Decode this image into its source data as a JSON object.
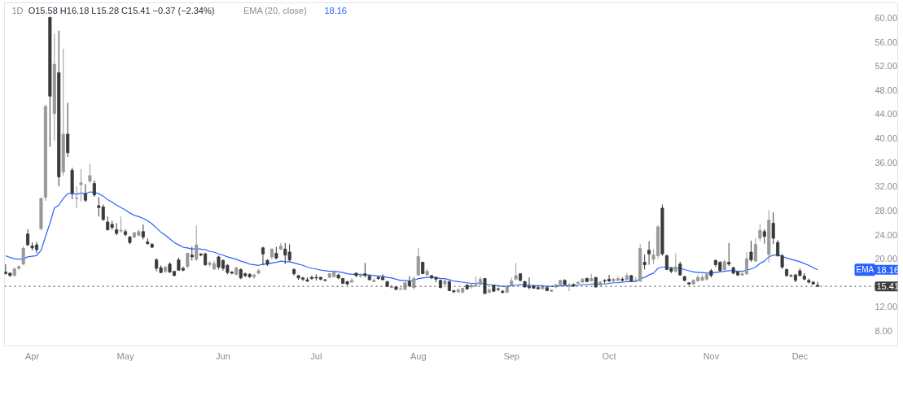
{
  "chart_data": {
    "type": "candlestick",
    "title": "1D",
    "annotations": [
      "O15.58 H16.18 L15.28 C15.41 −0.37 (−2.34%)",
      "EMA (20, close)",
      "18.16",
      "18.16"
    ],
    "categories": [
      null,
      null,
      null,
      null,
      null,
      null,
      "Apr",
      null,
      null,
      null,
      null,
      null,
      null,
      null,
      null,
      null,
      null,
      null,
      null,
      null,
      null,
      null,
      null,
      null,
      null,
      null,
      null,
      "May",
      null,
      null,
      null,
      null,
      null,
      null,
      null,
      null,
      null,
      null,
      null,
      null,
      null,
      null,
      null,
      null,
      null,
      null,
      null,
      null,
      null,
      "Jun",
      null,
      null,
      null,
      null,
      null,
      null,
      null,
      null,
      null,
      null,
      null,
      null,
      null,
      null,
      null,
      null,
      null,
      null,
      null,
      null,
      "Jul",
      null,
      null,
      null,
      null,
      null,
      null,
      null,
      null,
      null,
      null,
      null,
      null,
      null,
      null,
      null,
      null,
      null,
      null,
      null,
      null,
      null,
      null,
      "Aug",
      null,
      null,
      null,
      null,
      null,
      null,
      null,
      null,
      null,
      null,
      null,
      null,
      null,
      null,
      null,
      null,
      null,
      null,
      null,
      null,
      "Sep",
      null,
      null,
      null,
      null,
      null,
      null,
      null,
      null,
      null,
      null,
      null,
      null,
      null,
      null,
      null,
      null,
      null,
      null,
      null,
      null,
      null,
      "Oct",
      null,
      null,
      null,
      null,
      null,
      null,
      null,
      null,
      null,
      null,
      null,
      null,
      null,
      null,
      null,
      null,
      null,
      null,
      null,
      null,
      null,
      null,
      "Nov",
      null,
      null,
      null,
      null,
      null,
      null,
      null,
      null,
      null,
      null,
      null,
      null,
      null,
      null,
      null,
      null,
      null,
      null,
      null,
      "Dec",
      null,
      null,
      null,
      null
    ],
    "ohlc": [
      [
        17.8,
        19.1,
        17.4,
        17.5
      ],
      [
        17.6,
        17.7,
        17.0,
        17.2
      ],
      [
        17.2,
        18.5,
        17.1,
        18.3
      ],
      [
        18.4,
        18.9,
        18.1,
        18.7
      ],
      [
        19.1,
        22.1,
        18.9,
        21.7
      ],
      [
        24.1,
        24.9,
        22.1,
        22.3
      ],
      [
        22.1,
        22.7,
        21.4,
        21.8
      ],
      [
        22.3,
        22.8,
        20.9,
        21.5
      ],
      [
        25.0,
        30.2,
        24.7,
        30.0
      ],
      [
        30.2,
        45.6,
        29.6,
        45.3
      ],
      [
        60.1,
        60.1,
        38.6,
        47.0
      ],
      [
        44.1,
        57.4,
        39.6,
        52.3
      ],
      [
        50.9,
        57.9,
        32.0,
        33.6
      ],
      [
        34.4,
        54.9,
        33.8,
        40.7
      ],
      [
        40.7,
        45.9,
        36.9,
        37.6
      ],
      [
        34.7,
        35.1,
        29.9,
        30.9
      ],
      [
        30.0,
        32.0,
        28.4,
        30.1
      ],
      [
        32.3,
        34.9,
        29.5,
        32.6
      ],
      [
        30.8,
        32.4,
        29.4,
        29.7
      ],
      [
        32.9,
        35.7,
        32.6,
        33.8
      ],
      [
        32.5,
        33.0,
        30.3,
        30.6
      ],
      [
        28.8,
        30.2,
        27.0,
        28.5
      ],
      [
        28.6,
        29.0,
        26.3,
        26.5
      ],
      [
        26.1,
        27.0,
        24.7,
        24.8
      ],
      [
        25.7,
        26.3,
        24.8,
        25.2
      ],
      [
        24.8,
        25.9,
        23.9,
        24.2
      ],
      [
        24.6,
        27.0,
        24.3,
        24.7
      ],
      [
        24.5,
        24.9,
        23.7,
        24.0
      ],
      [
        23.6,
        23.8,
        22.4,
        22.7
      ],
      [
        23.6,
        24.5,
        23.4,
        24.3
      ],
      [
        23.9,
        24.8,
        23.7,
        24.5
      ],
      [
        24.5,
        25.7,
        23.2,
        23.6
      ],
      [
        22.8,
        23.4,
        22.3,
        22.5
      ],
      [
        22.4,
        22.6,
        21.8,
        21.9
      ],
      [
        19.8,
        20.1,
        17.9,
        18.4
      ],
      [
        18.5,
        18.9,
        17.6,
        17.7
      ],
      [
        17.9,
        18.8,
        17.6,
        18.6
      ],
      [
        19.1,
        19.4,
        17.6,
        17.8
      ],
      [
        17.9,
        18.0,
        17.1,
        17.2
      ],
      [
        19.8,
        20.2,
        18.0,
        18.1
      ],
      [
        18.4,
        18.7,
        17.9,
        18.1
      ],
      [
        18.7,
        21.0,
        18.4,
        20.9
      ],
      [
        20.6,
        22.0,
        19.7,
        20.3
      ],
      [
        19.9,
        25.5,
        19.6,
        22.3
      ],
      [
        20.8,
        20.9,
        20.4,
        20.6
      ],
      [
        20.8,
        21.0,
        18.8,
        19.0
      ],
      [
        19.0,
        19.6,
        18.6,
        19.3
      ],
      [
        18.3,
        19.7,
        18.1,
        19.2
      ],
      [
        20.3,
        20.5,
        18.2,
        18.6
      ],
      [
        19.7,
        19.9,
        18.0,
        18.4
      ],
      [
        18.9,
        19.1,
        17.4,
        17.7
      ],
      [
        17.8,
        17.9,
        17.4,
        17.6
      ],
      [
        17.4,
        18.6,
        17.2,
        18.5
      ],
      [
        18.2,
        18.4,
        16.6,
        16.8
      ],
      [
        17.5,
        17.7,
        16.9,
        17.2
      ],
      [
        17.4,
        17.6,
        16.8,
        17.0
      ],
      [
        17.0,
        17.5,
        16.6,
        17.3
      ],
      [
        17.6,
        18.3,
        17.4,
        18.0
      ],
      [
        21.8,
        22.0,
        18.9,
        20.8
      ],
      [
        19.7,
        19.9,
        18.8,
        19.1
      ],
      [
        20.3,
        21.7,
        19.9,
        21.6
      ],
      [
        20.9,
        22.0,
        19.9,
        20.1
      ],
      [
        21.6,
        22.6,
        21.4,
        22.1
      ],
      [
        21.6,
        22.6,
        19.1,
        20.6
      ],
      [
        21.1,
        22.4,
        19.5,
        19.8
      ],
      [
        18.2,
        18.4,
        17.2,
        17.5
      ],
      [
        17.2,
        17.3,
        16.5,
        16.8
      ],
      [
        16.8,
        17.0,
        16.3,
        16.6
      ],
      [
        16.5,
        16.9,
        16.1,
        16.3
      ],
      [
        16.9,
        17.2,
        16.5,
        16.7
      ],
      [
        16.9,
        17.4,
        16.4,
        16.8
      ],
      [
        16.9,
        17.0,
        16.4,
        16.6
      ],
      [
        16.5,
        16.6,
        16.2,
        16.4
      ],
      [
        16.9,
        17.6,
        16.8,
        17.5
      ],
      [
        17.0,
        18.0,
        16.9,
        17.8
      ],
      [
        17.3,
        17.5,
        16.6,
        16.8
      ],
      [
        16.7,
        16.8,
        15.8,
        15.9
      ],
      [
        16.2,
        16.3,
        15.6,
        15.8
      ],
      [
        16.1,
        16.8,
        16.0,
        16.4
      ],
      [
        17.6,
        17.7,
        16.9,
        17.2
      ],
      [
        17.1,
        17.5,
        16.8,
        17.4
      ],
      [
        17.5,
        19.3,
        16.9,
        17.2
      ],
      [
        17.1,
        17.3,
        16.4,
        16.5
      ],
      [
        16.2,
        16.7,
        16.1,
        16.4
      ],
      [
        16.9,
        17.1,
        16.5,
        16.7
      ],
      [
        16.9,
        17.4,
        16.4,
        16.5
      ],
      [
        16.2,
        16.3,
        15.3,
        15.4
      ],
      [
        15.2,
        15.6,
        15.1,
        15.4
      ],
      [
        15.3,
        15.4,
        14.8,
        14.9
      ],
      [
        14.9,
        15.3,
        14.8,
        15.0
      ],
      [
        14.9,
        16.2,
        14.8,
        16.0
      ],
      [
        16.2,
        17.1,
        15.3,
        15.5
      ],
      [
        15.2,
        17.1,
        14.9,
        16.7
      ],
      [
        17.3,
        21.8,
        17.2,
        20.4
      ],
      [
        19.4,
        19.5,
        17.5,
        17.5
      ],
      [
        17.3,
        18.3,
        17.2,
        17.9
      ],
      [
        17.2,
        17.3,
        16.6,
        16.8
      ],
      [
        16.9,
        17.0,
        16.1,
        16.6
      ],
      [
        16.4,
        16.5,
        15.1,
        15.2
      ],
      [
        15.8,
        16.5,
        15.6,
        16.3
      ],
      [
        16.2,
        16.3,
        14.6,
        14.7
      ],
      [
        14.7,
        14.8,
        14.3,
        14.5
      ],
      [
        14.5,
        15.1,
        14.3,
        14.8
      ],
      [
        14.4,
        15.2,
        14.3,
        15.1
      ],
      [
        15.6,
        15.8,
        14.8,
        15.0
      ],
      [
        15.3,
        15.9,
        15.0,
        15.6
      ],
      [
        15.5,
        17.1,
        15.3,
        15.7
      ],
      [
        15.7,
        17.0,
        15.6,
        16.6
      ],
      [
        16.7,
        16.8,
        14.2,
        14.2
      ],
      [
        14.4,
        15.1,
        14.3,
        14.8
      ],
      [
        15.6,
        15.7,
        14.5,
        14.6
      ],
      [
        15.0,
        15.2,
        14.6,
        14.9
      ],
      [
        14.6,
        14.8,
        14.2,
        14.4
      ],
      [
        14.4,
        15.6,
        14.3,
        15.4
      ],
      [
        15.6,
        16.9,
        15.5,
        16.3
      ],
      [
        16.6,
        19.3,
        16.4,
        17.2
      ],
      [
        17.5,
        17.6,
        16.2,
        16.4
      ],
      [
        16.2,
        16.3,
        15.2,
        15.3
      ],
      [
        15.4,
        16.9,
        14.9,
        15.2
      ],
      [
        15.5,
        15.6,
        15.0,
        15.1
      ],
      [
        15.2,
        15.4,
        14.9,
        15.0
      ],
      [
        15.0,
        15.5,
        14.9,
        15.4
      ],
      [
        15.2,
        15.3,
        14.6,
        14.7
      ],
      [
        14.6,
        14.9,
        14.5,
        14.8
      ],
      [
        15.3,
        15.8,
        15.1,
        15.7
      ],
      [
        15.7,
        16.5,
        15.6,
        16.4
      ],
      [
        16.4,
        16.6,
        15.6,
        15.7
      ],
      [
        15.4,
        15.9,
        14.6,
        15.7
      ],
      [
        15.7,
        15.9,
        15.3,
        15.5
      ],
      [
        15.9,
        16.3,
        15.8,
        16.1
      ],
      [
        16.1,
        16.8,
        16.0,
        16.6
      ],
      [
        16.7,
        16.9,
        16.1,
        16.2
      ],
      [
        16.3,
        17.5,
        16.2,
        16.7
      ],
      [
        16.9,
        16.9,
        15.2,
        15.3
      ],
      [
        15.6,
        16.3,
        15.5,
        16.1
      ],
      [
        16.4,
        16.6,
        15.9,
        16.3
      ],
      [
        16.6,
        17.3,
        16.1,
        16.3
      ],
      [
        16.3,
        16.8,
        16.0,
        16.6
      ],
      [
        16.4,
        17.1,
        16.2,
        16.7
      ],
      [
        16.6,
        16.9,
        16.2,
        16.4
      ],
      [
        16.5,
        17.6,
        16.3,
        17.2
      ],
      [
        17.2,
        17.3,
        16.2,
        16.3
      ],
      [
        16.2,
        17.0,
        16.1,
        16.4
      ],
      [
        16.3,
        22.4,
        16.1,
        21.7
      ],
      [
        19.4,
        20.7,
        18.2,
        19.0
      ],
      [
        21.4,
        22.9,
        19.0,
        20.8
      ],
      [
        19.9,
        21.6,
        19.1,
        20.6
      ],
      [
        20.5,
        25.6,
        20.0,
        25.3
      ],
      [
        28.4,
        29.0,
        20.5,
        20.8
      ],
      [
        20.5,
        20.7,
        18.1,
        18.2
      ],
      [
        18.4,
        18.6,
        17.6,
        17.9
      ],
      [
        17.9,
        20.9,
        17.7,
        18.6
      ],
      [
        19.1,
        19.5,
        17.2,
        17.3
      ],
      [
        17.0,
        17.2,
        16.2,
        16.4
      ],
      [
        16.0,
        16.1,
        15.6,
        15.8
      ],
      [
        15.8,
        16.6,
        15.7,
        16.4
      ],
      [
        16.3,
        17.3,
        16.2,
        16.9
      ],
      [
        16.4,
        17.4,
        16.3,
        16.9
      ],
      [
        16.6,
        17.6,
        16.4,
        17.4
      ],
      [
        18.0,
        18.3,
        16.9,
        17.2
      ],
      [
        19.7,
        19.9,
        18.6,
        19.0
      ],
      [
        19.4,
        19.6,
        17.9,
        18.0
      ],
      [
        18.2,
        19.8,
        18.0,
        19.5
      ],
      [
        19.4,
        22.6,
        18.8,
        19.1
      ],
      [
        18.5,
        18.7,
        17.4,
        17.6
      ],
      [
        17.8,
        17.9,
        17.1,
        17.3
      ],
      [
        17.3,
        17.9,
        17.1,
        17.5
      ],
      [
        17.5,
        21.1,
        17.3,
        20.0
      ],
      [
        21.1,
        23.0,
        19.5,
        19.8
      ],
      [
        19.6,
        23.4,
        19.5,
        22.4
      ],
      [
        23.4,
        25.7,
        22.9,
        24.7
      ],
      [
        24.5,
        24.9,
        22.5,
        23.7
      ],
      [
        20.7,
        28.1,
        19.4,
        26.4
      ],
      [
        25.9,
        27.7,
        22.4,
        23.4
      ],
      [
        22.7,
        23.1,
        20.3,
        20.5
      ],
      [
        20.5,
        20.8,
        18.3,
        18.6
      ],
      [
        18.2,
        18.4,
        17.0,
        17.2
      ],
      [
        17.2,
        17.4,
        17.0,
        17.1
      ],
      [
        17.3,
        17.5,
        16.1,
        16.4
      ],
      [
        18.0,
        18.4,
        17.1,
        17.2
      ],
      [
        17.1,
        17.6,
        16.4,
        16.6
      ],
      [
        16.4,
        16.7,
        15.9,
        16.1
      ],
      [
        16.1,
        16.3,
        15.7,
        15.8
      ],
      [
        15.58,
        16.18,
        15.28,
        15.41
      ]
    ],
    "colors": [
      "#3a3a3a",
      "#3a3a3a",
      "#999999",
      "#999999",
      "#999999",
      "#3a3a3a",
      "#3a3a3a",
      "#3a3a3a",
      "#999999",
      "#999999",
      "#3a3a3a",
      "#999999",
      "#3a3a3a",
      "#999999",
      "#3a3a3a",
      "#3a3a3a",
      "#999999",
      "#999999",
      "#3a3a3a",
      "#999999",
      "#3a3a3a",
      "#3a3a3a",
      "#3a3a3a",
      "#3a3a3a",
      "#3a3a3a",
      "#3a3a3a",
      "#999999",
      "#3a3a3a",
      "#3a3a3a",
      "#999999",
      "#999999",
      "#3a3a3a",
      "#3a3a3a",
      "#3a3a3a",
      "#3a3a3a",
      "#3a3a3a",
      "#999999",
      "#3a3a3a",
      "#3a3a3a",
      "#3a3a3a",
      "#3a3a3a",
      "#999999",
      "#3a3a3a",
      "#999999",
      "#3a3a3a",
      "#3a3a3a",
      "#999999",
      "#999999",
      "#3a3a3a",
      "#3a3a3a",
      "#3a3a3a",
      "#3a3a3a",
      "#999999",
      "#3a3a3a",
      "#3a3a3a",
      "#3a3a3a",
      "#999999",
      "#999999",
      "#3a3a3a",
      "#3a3a3a",
      "#999999",
      "#3a3a3a",
      "#999999",
      "#3a3a3a",
      "#3a3a3a",
      "#3a3a3a",
      "#3a3a3a",
      "#3a3a3a",
      "#3a3a3a",
      "#3a3a3a",
      "#3a3a3a",
      "#3a3a3a",
      "#3a3a3a",
      "#999999",
      "#999999",
      "#3a3a3a",
      "#3a3a3a",
      "#3a3a3a",
      "#999999",
      "#3a3a3a",
      "#999999",
      "#3a3a3a",
      "#3a3a3a",
      "#999999",
      "#3a3a3a",
      "#3a3a3a",
      "#3a3a3a",
      "#999999",
      "#3a3a3a",
      "#999999",
      "#999999",
      "#3a3a3a",
      "#999999",
      "#999999",
      "#3a3a3a",
      "#999999",
      "#3a3a3a",
      "#3a3a3a",
      "#3a3a3a",
      "#999999",
      "#3a3a3a",
      "#3a3a3a",
      "#999999",
      "#999999",
      "#3a3a3a",
      "#999999",
      "#999999",
      "#999999",
      "#3a3a3a",
      "#999999",
      "#3a3a3a",
      "#3a3a3a",
      "#3a3a3a",
      "#999999",
      "#999999",
      "#999999",
      "#3a3a3a",
      "#3a3a3a",
      "#3a3a3a",
      "#3a3a3a",
      "#3a3a3a",
      "#999999",
      "#3a3a3a",
      "#999999",
      "#999999",
      "#999999",
      "#3a3a3a",
      "#999999",
      "#3a3a3a",
      "#999999",
      "#999999",
      "#3a3a3a",
      "#999999",
      "#3a3a3a",
      "#999999",
      "#3a3a3a",
      "#3a3a3a",
      "#999999",
      "#999999",
      "#3a3a3a",
      "#999999",
      "#3a3a3a",
      "#999999",
      "#999999",
      "#3a3a3a",
      "#3a3a3a",
      "#999999",
      "#999999",
      "#3a3a3a",
      "#3a3a3a",
      "#3a3a3a",
      "#999999",
      "#3a3a3a",
      "#3a3a3a",
      "#3a3a3a",
      "#999999",
      "#999999",
      "#999999",
      "#999999",
      "#3a3a3a",
      "#3a3a3a",
      "#3a3a3a",
      "#999999",
      "#3a3a3a",
      "#3a3a3a",
      "#3a3a3a",
      "#999999",
      "#999999",
      "#3a3a3a",
      "#999999",
      "#999999",
      "#3a3a3a",
      "#999999",
      "#3a3a3a",
      "#3a3a3a",
      "#3a3a3a",
      "#3a3a3a",
      "#3a3a3a",
      "#3a3a3a",
      "#3a3a3a",
      "#3a3a3a",
      "#3a3a3a",
      "#3a3a3a",
      "#3a3a3a"
    ],
    "series": [
      {
        "name": "EMA",
        "type": "line",
        "color": "#2962ff",
        "values": [
          20.5,
          20.2,
          20.0,
          19.9,
          20.0,
          20.3,
          20.4,
          20.5,
          21.4,
          23.7,
          25.9,
          28.4,
          28.9,
          30.0,
          30.8,
          30.8,
          30.7,
          30.9,
          30.8,
          31.1,
          31.0,
          30.8,
          30.4,
          29.8,
          29.4,
          28.9,
          28.5,
          28.1,
          27.6,
          27.2,
          27.0,
          26.7,
          26.3,
          25.8,
          25.1,
          24.4,
          23.9,
          23.3,
          22.7,
          22.3,
          21.9,
          21.8,
          21.6,
          21.7,
          21.6,
          21.5,
          21.2,
          21.1,
          20.8,
          20.6,
          20.3,
          20.1,
          19.9,
          19.6,
          19.4,
          19.1,
          19.0,
          18.9,
          19.1,
          19.1,
          19.3,
          19.4,
          19.6,
          19.5,
          19.5,
          19.3,
          19.1,
          18.9,
          18.6,
          18.4,
          18.3,
          18.1,
          18.0,
          17.9,
          17.9,
          17.8,
          17.7,
          17.5,
          17.4,
          17.4,
          17.4,
          17.3,
          17.3,
          17.2,
          17.1,
          17.1,
          16.9,
          16.8,
          16.6,
          16.4,
          16.4,
          16.3,
          16.4,
          16.7,
          16.8,
          16.9,
          16.9,
          16.9,
          16.7,
          16.7,
          16.5,
          16.3,
          16.2,
          16.1,
          16.0,
          15.9,
          15.9,
          16.0,
          15.8,
          15.7,
          15.6,
          15.5,
          15.4,
          15.4,
          15.5,
          15.6,
          15.7,
          15.6,
          15.6,
          15.5,
          15.5,
          15.5,
          15.4,
          15.4,
          15.4,
          15.5,
          15.5,
          15.5,
          15.5,
          15.6,
          15.7,
          15.7,
          15.8,
          15.8,
          15.8,
          15.8,
          15.9,
          16.0,
          16.0,
          16.1,
          16.2,
          16.2,
          16.2,
          16.7,
          16.9,
          17.3,
          17.6,
          18.4,
          18.6,
          18.6,
          18.5,
          18.5,
          18.4,
          18.2,
          18.0,
          17.8,
          17.7,
          17.7,
          17.6,
          17.6,
          17.7,
          17.8,
          17.9,
          18.0,
          18.0,
          17.9,
          17.9,
          18.1,
          18.3,
          18.6,
          19.2,
          19.6,
          20.3,
          20.6,
          20.6,
          20.4,
          20.1,
          19.9,
          19.7,
          19.5,
          19.2,
          18.9,
          18.5,
          18.16
        ]
      }
    ],
    "ref_lines": [
      {
        "axis": "y",
        "value": 15.41,
        "label": "15.41",
        "color": "#3c3c3c",
        "line_style": "dotted"
      }
    ],
    "ylim": [
      5.5,
      62.5
    ],
    "yticks": [
      {
        "value": 8,
        "label": "8.00"
      },
      {
        "value": 12,
        "label": "12.00"
      },
      {
        "value": 20,
        "label": "20.00"
      },
      {
        "value": 24,
        "label": "24.00"
      },
      {
        "value": 28,
        "label": "28.00"
      },
      {
        "value": 32,
        "label": "32.00"
      },
      {
        "value": 36,
        "label": "36.00"
      },
      {
        "value": 40,
        "label": "40.00"
      },
      {
        "value": 44,
        "label": "44.00"
      },
      {
        "value": 48,
        "label": "48.00"
      },
      {
        "value": 52,
        "label": "52.00"
      },
      {
        "value": 56,
        "label": "56.00"
      },
      {
        "value": 60,
        "label": "60.00"
      }
    ]
  }
}
